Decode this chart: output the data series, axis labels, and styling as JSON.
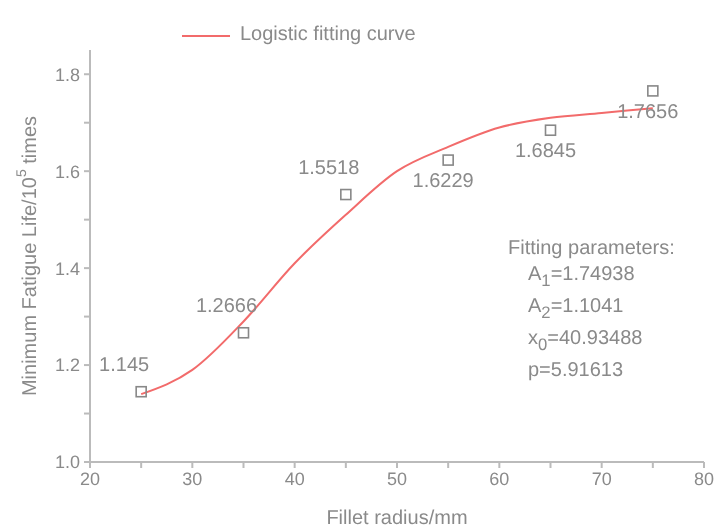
{
  "chart_data": {
    "type": "line",
    "xlabel": "Fillet radius/mm",
    "ylabel": "Minimum Fatigue Life/10$^{5}$ times",
    "xlim": [
      20,
      80
    ],
    "xticks": [
      20,
      {
        "value": 25,
        "label": null
      },
      30,
      {
        "value": 35,
        "label": null
      },
      40,
      {
        "value": 45,
        "label": null
      },
      50,
      {
        "value": 55,
        "label": null
      },
      60,
      {
        "value": 65,
        "label": null
      },
      70,
      {
        "value": 75,
        "label": null
      },
      80
    ],
    "ylim": [
      1.0,
      1.85
    ],
    "yticks": [
      {
        "value": 1.0,
        "label": "1.0"
      },
      {
        "value": 1.1,
        "label": null
      },
      1.2,
      {
        "value": 1.3,
        "label": null
      },
      1.4,
      {
        "value": 1.5,
        "label": null
      },
      1.6,
      {
        "value": 1.7,
        "label": null
      },
      1.8
    ],
    "legend": "top left",
    "series": [
      {
        "name": "Logistic fitting curve",
        "color": "#f26b6b",
        "marker": "none",
        "line_style": "solid",
        "x": [
          25,
          30,
          35,
          40,
          45,
          50,
          55,
          60,
          65,
          70,
          75
        ],
        "values": [
          1.14,
          1.19,
          1.29,
          1.41,
          1.51,
          1.6,
          1.65,
          1.69,
          1.71,
          1.72,
          1.73
        ]
      },
      {
        "type": "scatter",
        "color": "#888888",
        "marker": "square",
        "x": [
          25,
          35,
          45,
          55,
          65,
          75
        ],
        "values": [
          1.145,
          1.2666,
          1.5518,
          1.6229,
          1.6845,
          1.7656
        ],
        "value_labels": [
          "1.145",
          "1.2666",
          "1.5518",
          "1.6229",
          "1.6845",
          "1.7656"
        ]
      }
    ],
    "annotations": [
      "Fitting parameters:",
      "A$_{1}$=1.74938",
      "A$_{2}$=1.1041",
      "x$_{0}$=40.93488",
      "p=5.91613"
    ]
  }
}
